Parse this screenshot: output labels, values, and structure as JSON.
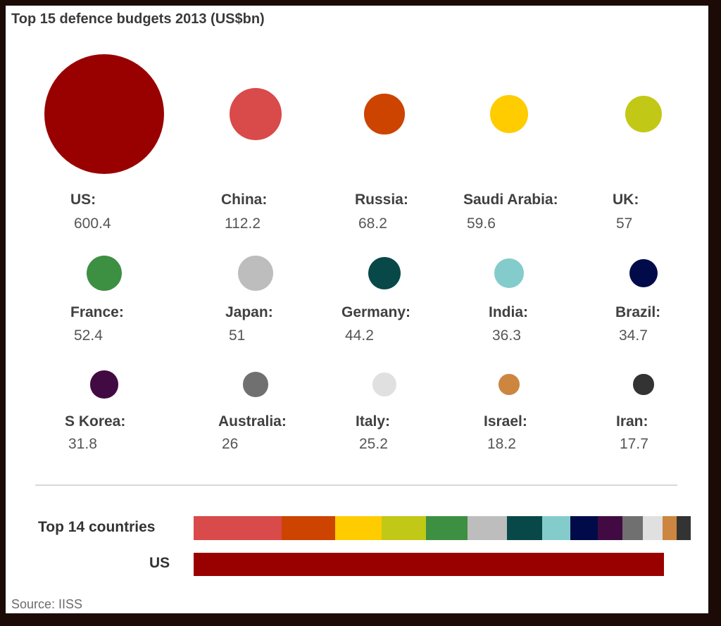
{
  "chart_data": {
    "type": "bubble",
    "title": "Top 15 defence budgets 2013 (US$bn)",
    "unit": "US$bn",
    "items": [
      {
        "country": "US",
        "label": "US:",
        "value": 600.4,
        "display": "600.4",
        "color": "#990000"
      },
      {
        "country": "China",
        "label": "China:",
        "value": 112.2,
        "display": "112.2",
        "color": "#d94a4a"
      },
      {
        "country": "Russia",
        "label": "Russia:",
        "value": 68.2,
        "display": "68.2",
        "color": "#cc4400"
      },
      {
        "country": "Saudi Arabia",
        "label": "Saudi Arabia:",
        "value": 59.6,
        "display": "59.6",
        "color": "#ffcc00"
      },
      {
        "country": "UK",
        "label": "UK:",
        "value": 57,
        "display": "57",
        "color": "#c2c816"
      },
      {
        "country": "France",
        "label": "France:",
        "value": 52.4,
        "display": "52.4",
        "color": "#3d8f42"
      },
      {
        "country": "Japan",
        "label": "Japan:",
        "value": 51,
        "display": "51",
        "color": "#bdbdbd"
      },
      {
        "country": "Germany",
        "label": "Germany:",
        "value": 44.2,
        "display": "44.2",
        "color": "#084848"
      },
      {
        "country": "India",
        "label": "India:",
        "value": 36.3,
        "display": "36.3",
        "color": "#84cccc"
      },
      {
        "country": "Brazil",
        "label": "Brazil:",
        "value": 34.7,
        "display": "34.7",
        "color": "#020b4a"
      },
      {
        "country": "S Korea",
        "label": "S Korea:",
        "value": 31.8,
        "display": "31.8",
        "color": "#420a42"
      },
      {
        "country": "Australia",
        "label": "Australia:",
        "value": 26,
        "display": "26",
        "color": "#707070"
      },
      {
        "country": "Italy",
        "label": "Italy:",
        "value": 25.2,
        "display": "25.2",
        "color": "#e0e0e0"
      },
      {
        "country": "Israel",
        "label": "Israel:",
        "value": 18.2,
        "display": "18.2",
        "color": "#cc8640"
      },
      {
        "country": "Iran",
        "label": "Iran:",
        "value": 17.7,
        "display": "17.7",
        "color": "#333333"
      }
    ],
    "comparison": {
      "top14_label": "Top 14 countries",
      "us_label": "US"
    }
  },
  "source": "Source: IISS"
}
